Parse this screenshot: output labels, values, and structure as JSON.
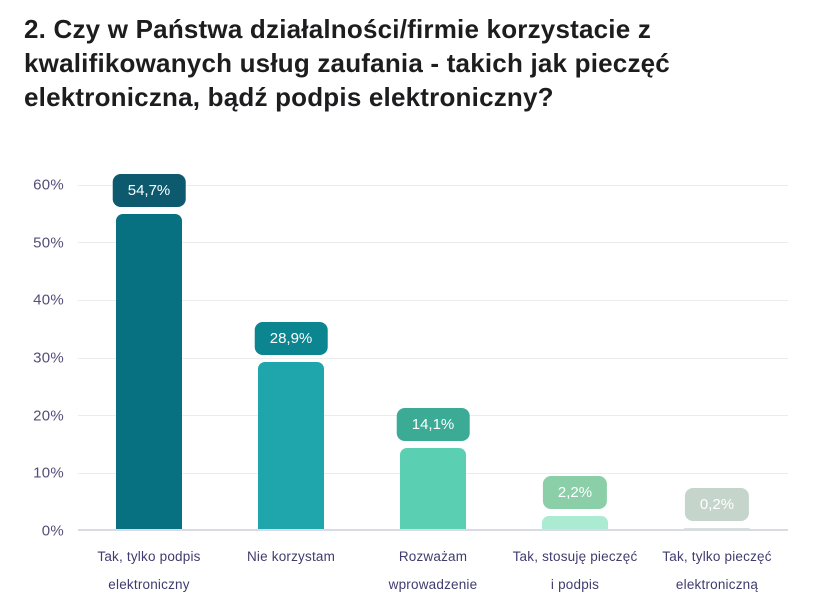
{
  "title": "2. Czy w Państwa działalności/firmie korzystacie z kwalifikowanych usług zaufania - takich jak pieczęć elektroniczna, bądź podpis elektroniczny?",
  "chart_data": {
    "type": "bar",
    "title": "2. Czy w Państwa działalności/firmie korzystacie z kwalifikowanych usług zaufania - takich jak pieczęć elektroniczna, bądź podpis elektroniczny?",
    "categories": [
      "Tak, tylko podpis elektroniczny",
      "Nie korzystam",
      "Rozważam wprowadzenie",
      "Tak, stosuję pieczęć i podpis",
      "Tak, tylko pieczęć elektroniczną"
    ],
    "category_lines": [
      [
        "Tak, tylko podpis",
        "elektroniczny"
      ],
      [
        "Nie korzystam"
      ],
      [
        "Rozważam",
        "wprowadzenie"
      ],
      [
        "Tak, stosuję pieczęć",
        "i podpis"
      ],
      [
        "Tak, tylko pieczęć",
        "elektroniczną"
      ]
    ],
    "values": [
      54.7,
      28.9,
      14.1,
      2.2,
      0.2
    ],
    "value_labels": [
      "54,7%",
      "28,9%",
      "14,1%",
      "2,2%",
      "0,2%"
    ],
    "ylim": [
      0,
      60
    ],
    "y_ticks": [
      0,
      10,
      20,
      30,
      40,
      50,
      60
    ],
    "y_tick_labels": [
      "0%",
      "10%",
      "20%",
      "30%",
      "40%",
      "50%",
      "60%"
    ],
    "grid": true,
    "legend": "none",
    "bar_colors": [
      "#077181",
      "#1fa6ac",
      "#5bcfb2",
      "#abebd1",
      "#d7e2dc"
    ],
    "badge_colors": [
      "#0d5a6e",
      "#0b858f",
      "#3bab95",
      "#8bcfa8",
      "#c6d5cc"
    ],
    "colors": {
      "axis_line": "#d8dbe6",
      "gridline": "#ececec",
      "y_tick_text": "#554e79",
      "category_text": "#3f3c6e",
      "badge_text": "#ffffff",
      "title_text": "#1d1d1f",
      "background": "#ffffff"
    }
  }
}
